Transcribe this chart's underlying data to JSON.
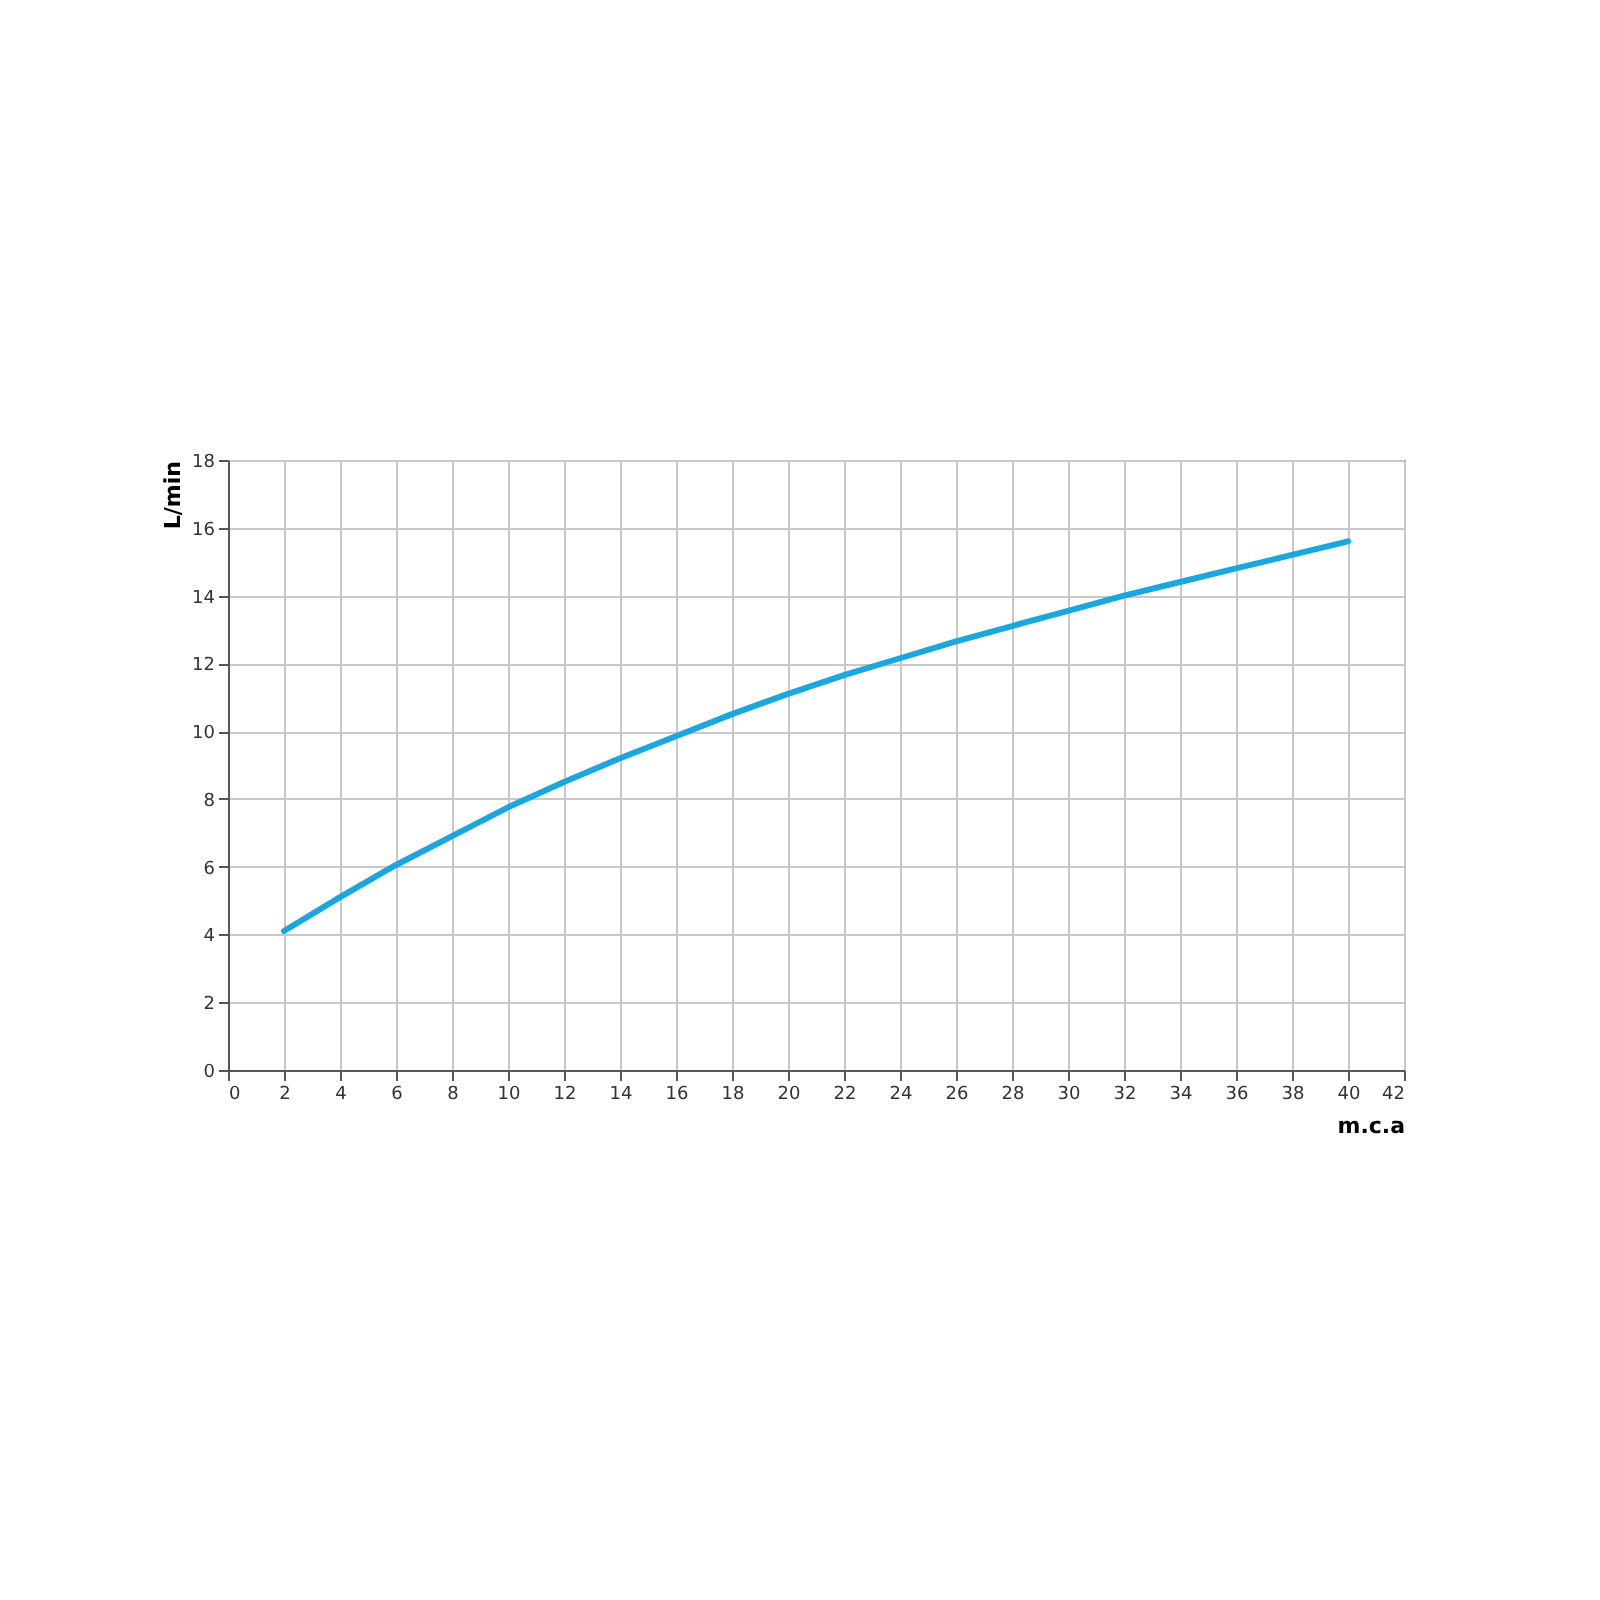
{
  "chart_data": {
    "type": "line",
    "xlabel": "m.c.a",
    "ylabel": "L/min",
    "x": [
      2,
      4,
      6,
      8,
      10,
      12,
      14,
      16,
      18,
      20,
      22,
      24,
      26,
      28,
      30,
      32,
      34,
      36,
      38,
      40
    ],
    "series": [
      {
        "color": "#1aa7e0",
        "values": [
          4.1,
          5.1,
          6.05,
          6.9,
          7.75,
          8.5,
          9.2,
          9.85,
          10.5,
          11.1,
          11.65,
          12.15,
          12.65,
          13.1,
          13.55,
          14.0,
          14.4,
          14.8,
          15.2,
          15.6
        ]
      }
    ],
    "xlim": [
      0,
      42
    ],
    "xticks": [
      0,
      2,
      4,
      6,
      8,
      10,
      12,
      14,
      16,
      18,
      20,
      22,
      24,
      26,
      28,
      30,
      32,
      34,
      36,
      38,
      40,
      42
    ],
    "ylim": [
      0,
      18
    ],
    "yticks": [
      0,
      2,
      4,
      6,
      8,
      10,
      12,
      14,
      16,
      18
    ],
    "grid": true,
    "marker": "none",
    "line_style": "solid"
  }
}
